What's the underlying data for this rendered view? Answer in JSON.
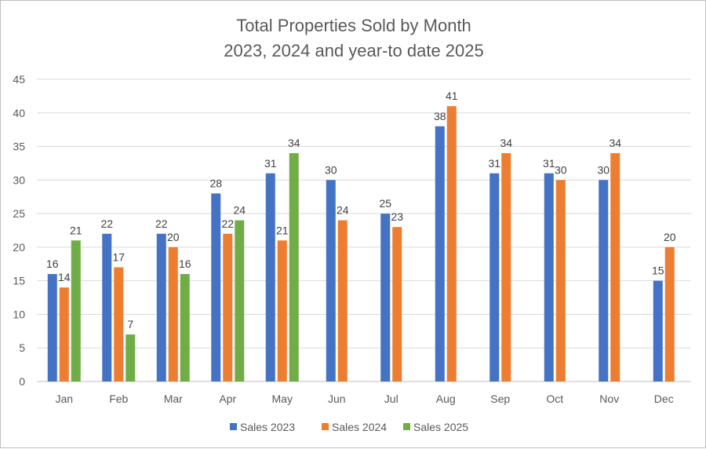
{
  "chart_data": {
    "type": "bar",
    "title": "Total Properties Sold by Month",
    "subtitle": "2023, 2024 and year-to date 2025",
    "categories": [
      "Jan",
      "Feb",
      "Mar",
      "Apr",
      "May",
      "Jun",
      "Jul",
      "Aug",
      "Sep",
      "Oct",
      "Nov",
      "Dec"
    ],
    "series": [
      {
        "name": "Sales 2023",
        "color": "#4472c4",
        "values": [
          16,
          22,
          22,
          28,
          31,
          30,
          25,
          38,
          31,
          31,
          30,
          15
        ]
      },
      {
        "name": "Sales 2024",
        "color": "#ed7d31",
        "values": [
          14,
          17,
          20,
          22,
          21,
          24,
          23,
          41,
          34,
          30,
          34,
          20
        ]
      },
      {
        "name": "Sales 2025",
        "color": "#70ad47",
        "values": [
          21,
          7,
          16,
          24,
          34,
          null,
          null,
          null,
          null,
          null,
          null,
          null
        ]
      }
    ],
    "ylim": [
      0,
      45
    ],
    "yticks": [
      0,
      5,
      10,
      15,
      20,
      25,
      30,
      35,
      40,
      45
    ],
    "grid": true,
    "legend": "bottom",
    "data_labels": true
  }
}
